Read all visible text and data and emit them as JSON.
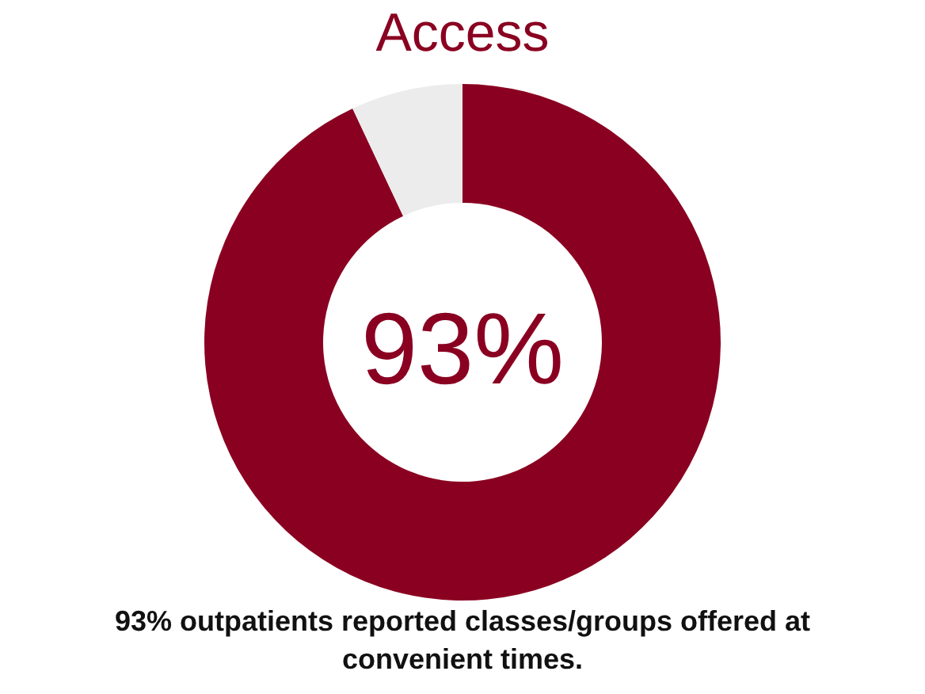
{
  "chart_data": {
    "type": "donut",
    "title": "Access",
    "categories": [
      null,
      null
    ],
    "values": [
      93,
      7
    ],
    "colors": [
      "#8a0021",
      "#ececec"
    ],
    "value_labels": [
      "93%",
      null
    ],
    "annotations": [
      "93% outpatients reported classes/groups offered at convenient times."
    ]
  }
}
